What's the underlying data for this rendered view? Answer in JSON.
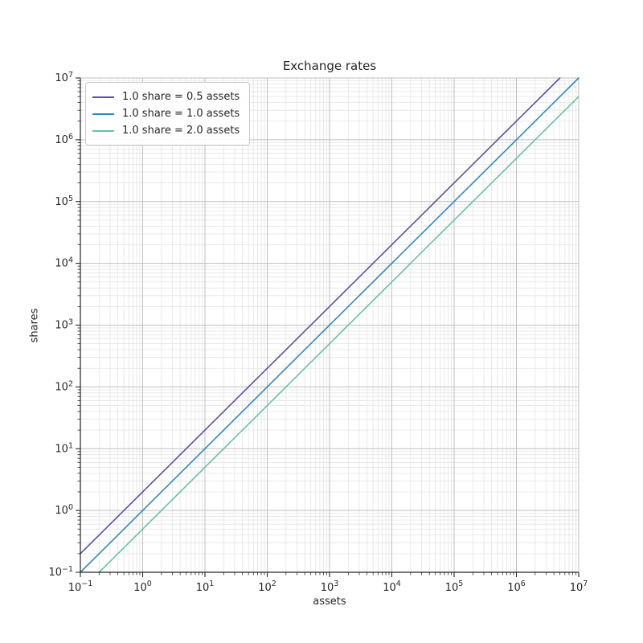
{
  "chart_data": {
    "type": "line",
    "title": "Exchange rates",
    "xlabel": "assets",
    "ylabel": "shares",
    "xscale": "log",
    "yscale": "log",
    "xlim": [
      0.1,
      10000000
    ],
    "ylim": [
      0.1,
      10000000
    ],
    "x_tick_exponents": [
      -1,
      0,
      1,
      2,
      3,
      4,
      5,
      6,
      7
    ],
    "y_tick_exponents": [
      -1,
      0,
      1,
      2,
      3,
      4,
      5,
      6,
      7
    ],
    "grid": "major+minor",
    "legend_position": "upper left",
    "series": [
      {
        "name": "1.0 share = 0.5 assets",
        "assets_per_share": 0.5,
        "color": "#5e4fa2",
        "endpoints": [
          [
            0.1,
            0.2
          ],
          [
            5000000,
            10000000
          ]
        ]
      },
      {
        "name": "1.0 share = 1.0 assets",
        "assets_per_share": 1.0,
        "color": "#3288bd",
        "endpoints": [
          [
            0.1,
            0.1
          ],
          [
            10000000,
            10000000
          ]
        ]
      },
      {
        "name": "1.0 share = 2.0 assets",
        "assets_per_share": 2.0,
        "color": "#66c2a5",
        "endpoints": [
          [
            0.2,
            0.1
          ],
          [
            10000000,
            5000000
          ]
        ]
      }
    ],
    "colors": {
      "spine": "#262626",
      "tick": "#262626",
      "major_grid": "#bfbfbf",
      "minor_grid": "#e4e4e4",
      "text": "#262626",
      "legend_border": "#cccccc"
    }
  }
}
